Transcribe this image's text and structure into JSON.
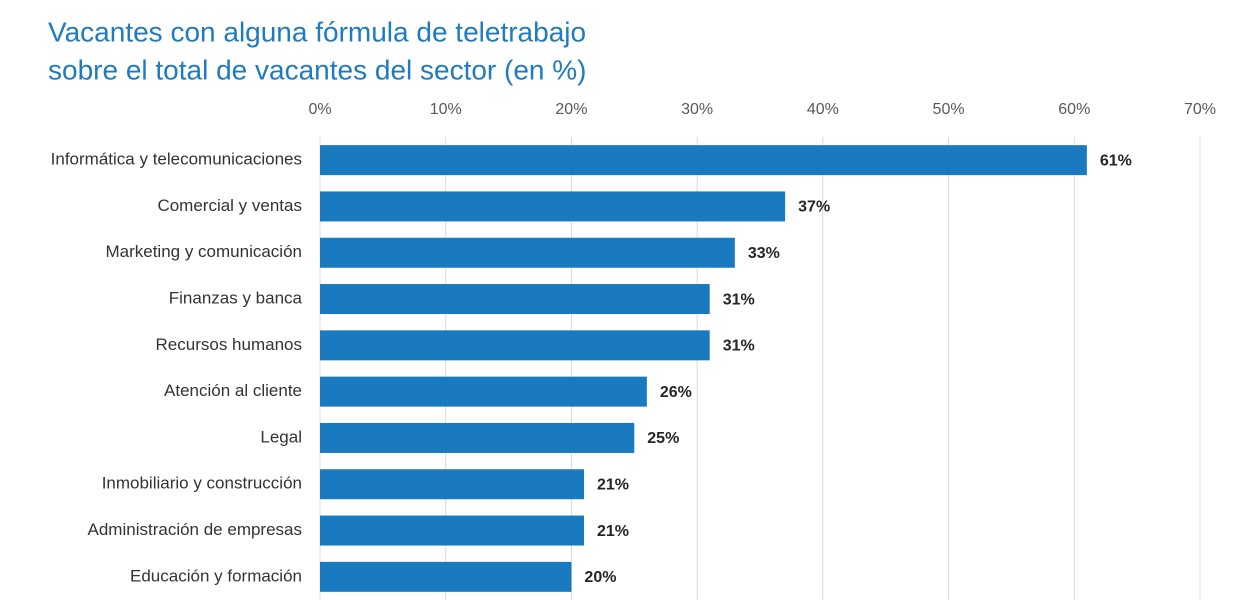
{
  "chart_data": {
    "type": "bar",
    "orientation": "horizontal",
    "title": [
      "Vacantes con alguna fórmula de teletrabajo",
      "sobre el total de vacantes del sector (en %)"
    ],
    "categories": [
      "Informática y telecomunicaciones",
      "Comercial y ventas",
      "Marketing y comunicación",
      "Finanzas y banca",
      "Recursos humanos",
      "Atención al cliente",
      "Legal",
      "Inmobiliario y construcción",
      "Administración de empresas",
      "Educación y formación"
    ],
    "values": [
      61,
      37,
      33,
      31,
      31,
      26,
      25,
      21,
      21,
      20
    ],
    "value_labels": [
      "61%",
      "37%",
      "33%",
      "31%",
      "31%",
      "26%",
      "25%",
      "21%",
      "21%",
      "20%"
    ],
    "color": "#1a7abf",
    "xlim": [
      0,
      70
    ],
    "xticks": [
      {
        "value": 0,
        "label": "0%"
      },
      {
        "value": 10,
        "label": "10%"
      },
      {
        "value": 20,
        "label": "20%"
      },
      {
        "value": 30,
        "label": "30%"
      },
      {
        "value": 40,
        "label": "40%"
      },
      {
        "value": 50,
        "label": "50%"
      },
      {
        "value": 60,
        "label": "60%"
      },
      {
        "value": 70,
        "label": "70%"
      }
    ],
    "grid": true
  }
}
